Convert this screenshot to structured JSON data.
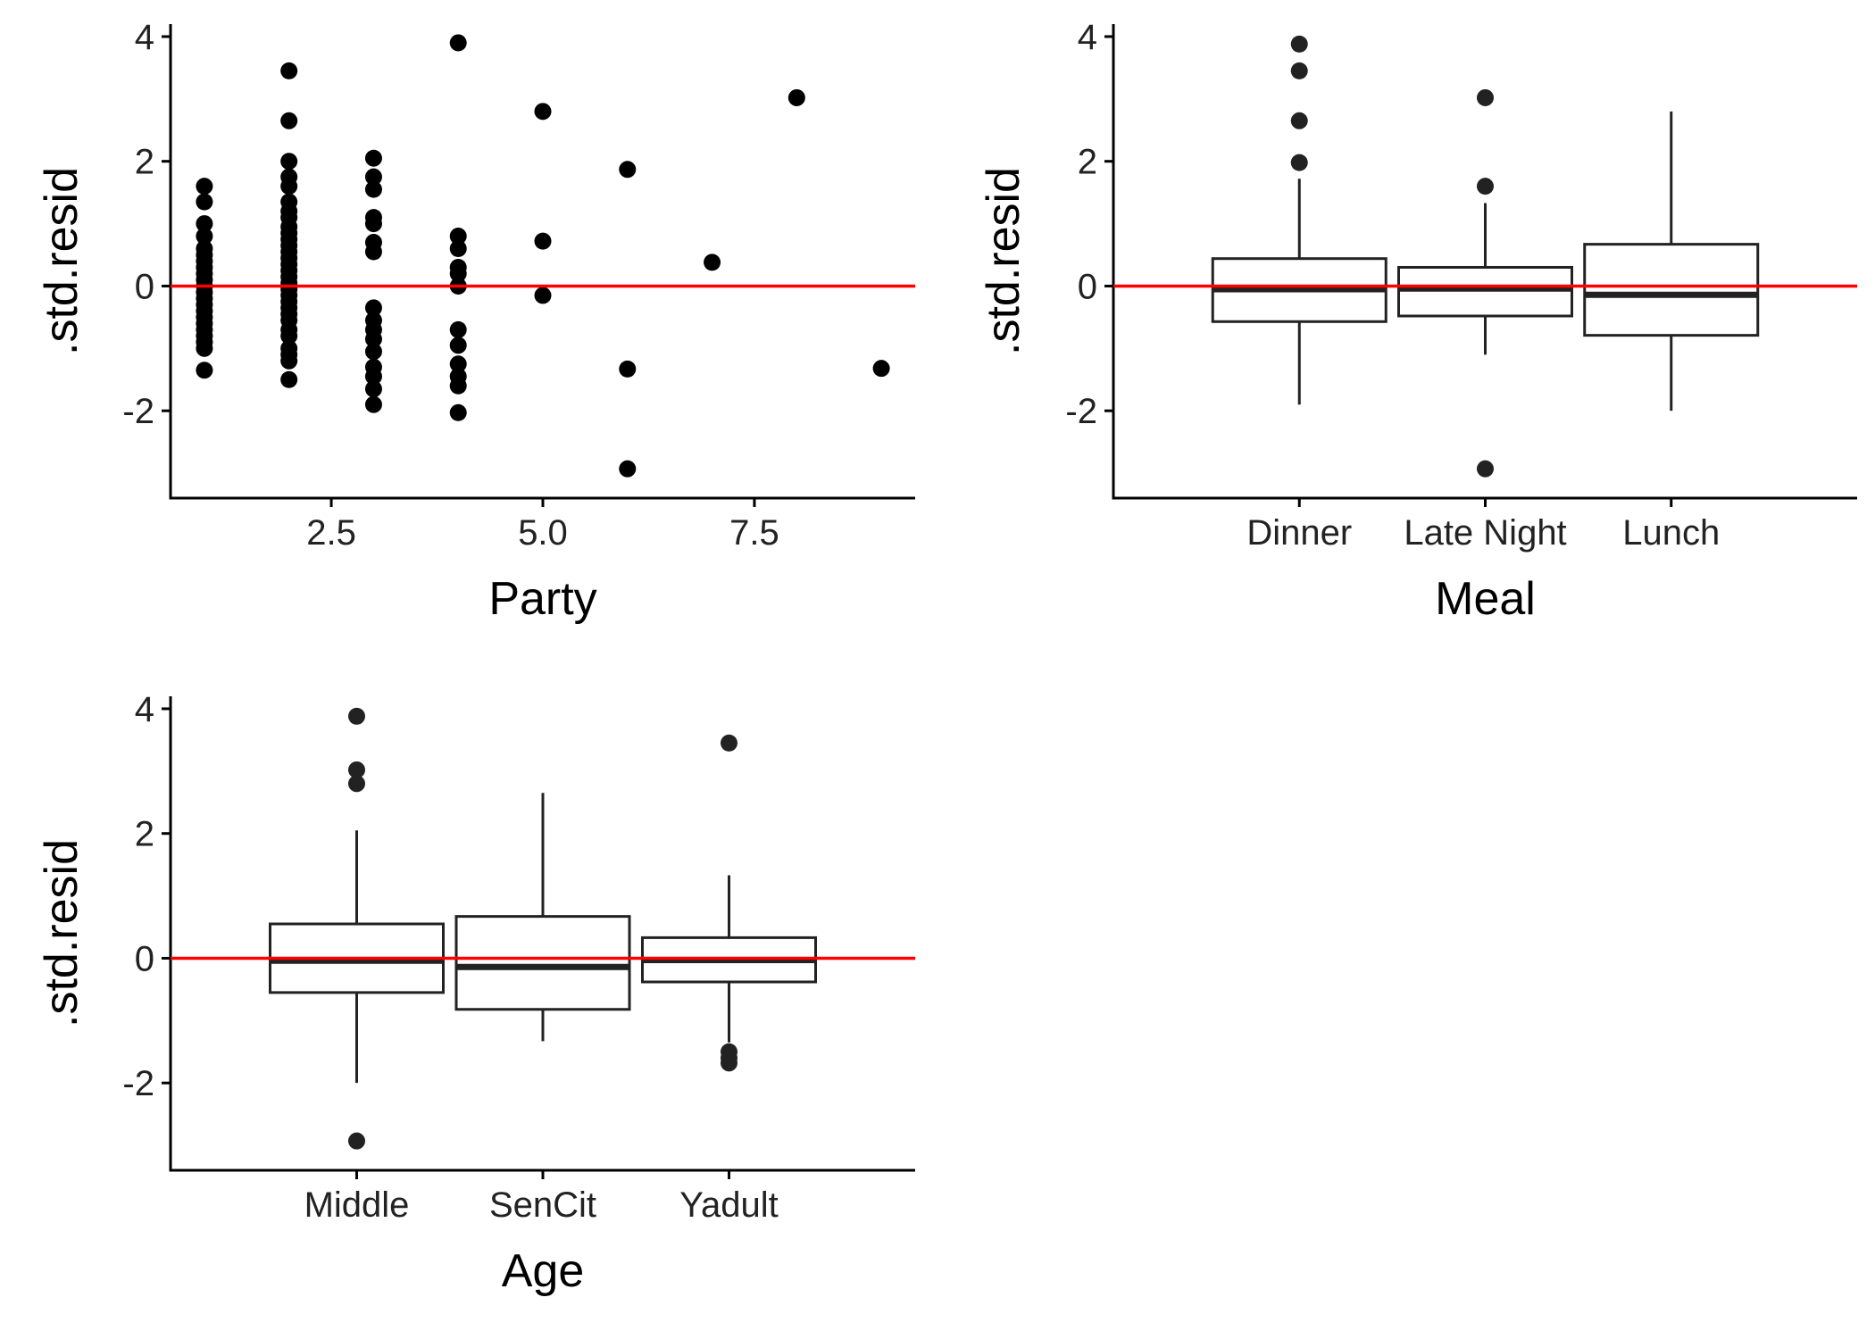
{
  "chart_data": [
    {
      "id": "party",
      "type": "scatter",
      "xlabel": "Party",
      "ylabel": ".std.resid",
      "xlim": [
        0.6,
        9.4
      ],
      "ylim": [
        -3.4,
        4.2
      ],
      "xticks": [
        "2.5",
        "5.0",
        "7.5"
      ],
      "yticks": [
        "4",
        "2",
        "0",
        "-2"
      ],
      "point_color": "#000000",
      "reference_line": {
        "y": 0,
        "color": "#ff0000"
      },
      "points": [
        [
          1,
          1.6
        ],
        [
          1,
          1.35
        ],
        [
          1,
          1.0
        ],
        [
          1,
          0.8
        ],
        [
          1,
          0.6
        ],
        [
          1,
          0.5
        ],
        [
          1,
          0.4
        ],
        [
          1,
          0.3
        ],
        [
          1,
          0.2
        ],
        [
          1,
          0.1
        ],
        [
          1,
          0.0
        ],
        [
          1,
          -0.1
        ],
        [
          1,
          -0.2
        ],
        [
          1,
          -0.3
        ],
        [
          1,
          -0.4
        ],
        [
          1,
          -0.5
        ],
        [
          1,
          -0.6
        ],
        [
          1,
          -0.7
        ],
        [
          1,
          -0.8
        ],
        [
          1,
          -0.9
        ],
        [
          1,
          -1.0
        ],
        [
          1,
          -1.35
        ],
        [
          2,
          3.45
        ],
        [
          2,
          2.65
        ],
        [
          2,
          2.0
        ],
        [
          2,
          1.75
        ],
        [
          2,
          1.6
        ],
        [
          2,
          1.35
        ],
        [
          2,
          1.2
        ],
        [
          2,
          1.1
        ],
        [
          2,
          0.95
        ],
        [
          2,
          0.85
        ],
        [
          2,
          0.75
        ],
        [
          2,
          0.65
        ],
        [
          2,
          0.55
        ],
        [
          2,
          0.45
        ],
        [
          2,
          0.35
        ],
        [
          2,
          0.25
        ],
        [
          2,
          0.15
        ],
        [
          2,
          0.05
        ],
        [
          2,
          -0.05
        ],
        [
          2,
          -0.15
        ],
        [
          2,
          -0.25
        ],
        [
          2,
          -0.35
        ],
        [
          2,
          -0.45
        ],
        [
          2,
          -0.55
        ],
        [
          2,
          -0.7
        ],
        [
          2,
          -0.8
        ],
        [
          2,
          -1.0
        ],
        [
          2,
          -1.1
        ],
        [
          2,
          -1.2
        ],
        [
          2,
          -1.5
        ],
        [
          3,
          2.05
        ],
        [
          3,
          1.75
        ],
        [
          3,
          1.55
        ],
        [
          3,
          1.1
        ],
        [
          3,
          1.0
        ],
        [
          3,
          0.7
        ],
        [
          3,
          0.55
        ],
        [
          3,
          -0.35
        ],
        [
          3,
          -0.55
        ],
        [
          3,
          -0.7
        ],
        [
          3,
          -0.85
        ],
        [
          3,
          -1.05
        ],
        [
          3,
          -1.3
        ],
        [
          3,
          -1.45
        ],
        [
          3,
          -1.65
        ],
        [
          3,
          -1.9
        ],
        [
          4,
          3.9
        ],
        [
          4,
          0.8
        ],
        [
          4,
          0.6
        ],
        [
          4,
          0.3
        ],
        [
          4,
          0.2
        ],
        [
          4,
          0.0
        ],
        [
          4,
          -0.7
        ],
        [
          4,
          -0.95
        ],
        [
          4,
          -1.25
        ],
        [
          4,
          -1.45
        ],
        [
          4,
          -1.6
        ],
        [
          4,
          -2.03
        ],
        [
          5,
          2.8
        ],
        [
          5,
          0.72
        ],
        [
          5,
          -0.15
        ],
        [
          6,
          1.87
        ],
        [
          6,
          -1.33
        ],
        [
          6,
          -2.93
        ],
        [
          7,
          0.38
        ],
        [
          8,
          3.02
        ],
        [
          9,
          -1.32
        ]
      ]
    },
    {
      "id": "meal",
      "type": "box",
      "xlabel": "Meal",
      "ylabel": ".std.resid",
      "ylim": [
        -3.4,
        4.2
      ],
      "yticks": [
        "4",
        "2",
        "0",
        "-2"
      ],
      "categories": [
        "Dinner",
        "Late Night",
        "Lunch"
      ],
      "box_color": "#222222",
      "reference_line": {
        "y": 0,
        "color": "#ff0000"
      },
      "boxes": [
        {
          "q1": -0.57,
          "median": -0.05,
          "q3": 0.44,
          "whisker_low": -1.9,
          "whisker_high": 1.72,
          "outliers": [
            3.88,
            3.45,
            2.65,
            1.98
          ]
        },
        {
          "q1": -0.48,
          "median": -0.04,
          "q3": 0.3,
          "whisker_low": -1.1,
          "whisker_high": 1.33,
          "outliers": [
            3.02,
            1.6,
            -2.93
          ]
        },
        {
          "q1": -0.79,
          "median": -0.14,
          "q3": 0.67,
          "whisker_low": -2.0,
          "whisker_high": 2.8,
          "outliers": []
        }
      ]
    },
    {
      "id": "age",
      "type": "box",
      "xlabel": "Age",
      "ylabel": ".std.resid",
      "ylim": [
        -3.4,
        4.2
      ],
      "yticks": [
        "4",
        "2",
        "0",
        "-2"
      ],
      "categories": [
        "Middle",
        "SenCit",
        "Yadult"
      ],
      "box_color": "#222222",
      "reference_line": {
        "y": 0,
        "color": "#ff0000"
      },
      "boxes": [
        {
          "q1": -0.55,
          "median": -0.04,
          "q3": 0.55,
          "whisker_low": -2.0,
          "whisker_high": 2.05,
          "outliers": [
            3.88,
            3.02,
            2.8,
            -2.93
          ]
        },
        {
          "q1": -0.82,
          "median": -0.14,
          "q3": 0.67,
          "whisker_low": -1.33,
          "whisker_high": 2.65,
          "outliers": []
        },
        {
          "q1": -0.38,
          "median": -0.03,
          "q3": 0.33,
          "whisker_low": -1.35,
          "whisker_high": 1.33,
          "outliers": [
            3.45,
            -1.5,
            -1.6,
            -1.68
          ]
        }
      ]
    }
  ]
}
